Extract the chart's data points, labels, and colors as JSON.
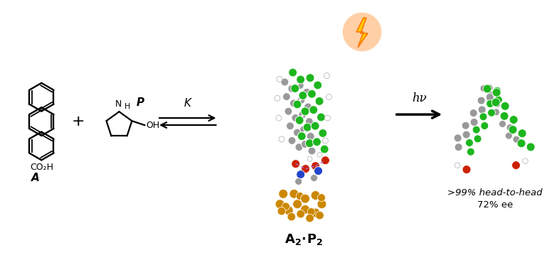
{
  "background_color": "#ffffff",
  "label_A": "A",
  "label_P": "P",
  "label_K": "K",
  "label_hv": "hν",
  "label_result1": ">99% head-to-head",
  "label_result2": "72% ee",
  "label_CO2H": "CO₂H",
  "plus_sign": "+",
  "black": "#000000",
  "molecule_green": "#1db61d",
  "molecule_gray": "#999999",
  "molecule_lgray": "#cccccc",
  "molecule_red": "#cc2200",
  "molecule_orange": "#cc8800",
  "molecule_blue": "#2244cc",
  "lightning_yellow": "#ffcc00",
  "lightning_orange": "#ff7700",
  "figsize": [
    7.79,
    3.66
  ],
  "dpi": 100
}
